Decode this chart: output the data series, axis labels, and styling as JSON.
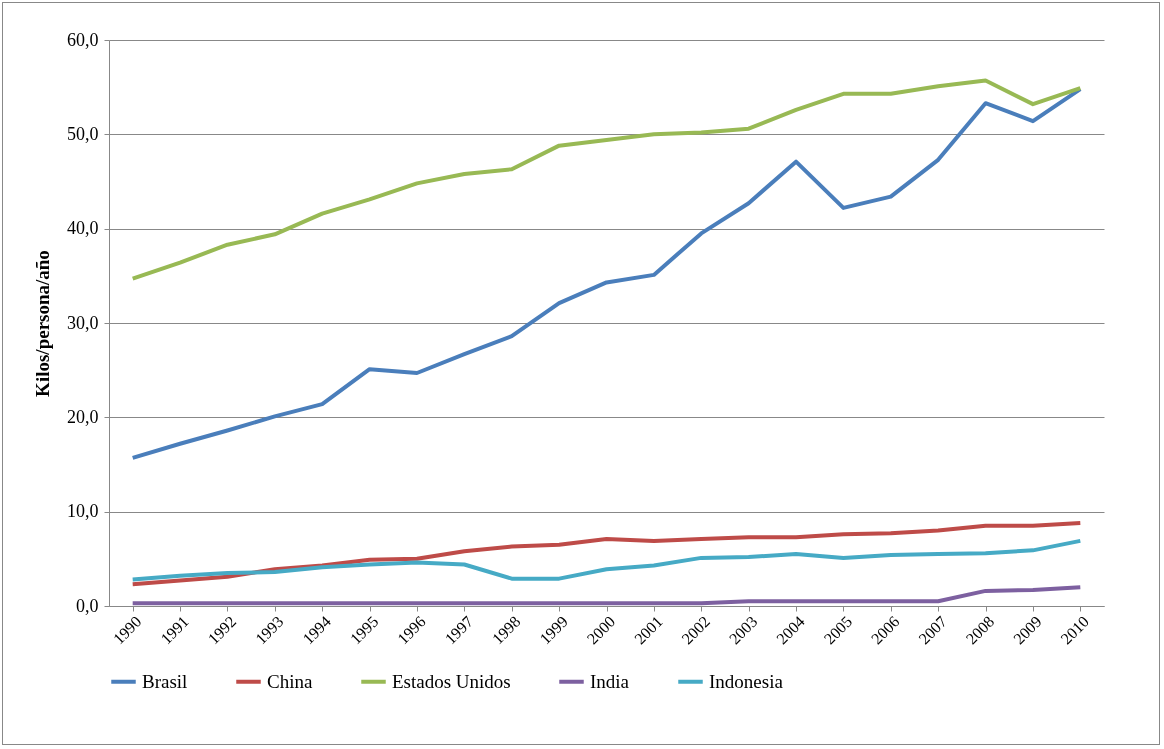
{
  "chart_data": {
    "type": "line",
    "ylabel": "Kilos/persona/año",
    "categories": [
      "1990",
      "1991",
      "1992",
      "1993",
      "1994",
      "1995",
      "1996",
      "1997",
      "1998",
      "1999",
      "2000",
      "2001",
      "2002",
      "2003",
      "2004",
      "2005",
      "2006",
      "2007",
      "2008",
      "2009",
      "2010"
    ],
    "series": [
      {
        "name": "Brasil",
        "color": "#4a7ebb",
        "values": [
          15.7,
          17.2,
          18.6,
          20.1,
          21.4,
          25.1,
          24.7,
          26.7,
          28.6,
          32.1,
          34.3,
          35.1,
          39.5,
          42.7,
          47.1,
          42.2,
          43.4,
          47.3,
          53.3,
          51.4,
          54.8
        ]
      },
      {
        "name": "China",
        "color": "#be4b48",
        "values": [
          2.3,
          2.7,
          3.1,
          3.9,
          4.3,
          4.9,
          5.0,
          5.8,
          6.3,
          6.5,
          7.1,
          6.9,
          7.1,
          7.3,
          7.3,
          7.6,
          7.7,
          8.0,
          8.5,
          8.5,
          8.8
        ]
      },
      {
        "name": "Estados Unidos",
        "color": "#98b954",
        "values": [
          34.7,
          36.4,
          38.3,
          39.4,
          41.6,
          43.1,
          44.8,
          45.8,
          46.3,
          48.8,
          49.4,
          50.0,
          50.2,
          50.6,
          52.6,
          54.3,
          54.3,
          55.1,
          55.7,
          53.2,
          54.9
        ]
      },
      {
        "name": "India",
        "color": "#7d60a0",
        "values": [
          0.3,
          0.3,
          0.3,
          0.3,
          0.3,
          0.3,
          0.3,
          0.3,
          0.3,
          0.3,
          0.3,
          0.3,
          0.3,
          0.5,
          0.5,
          0.5,
          0.5,
          0.5,
          1.6,
          1.7,
          2.0
        ]
      },
      {
        "name": "Indonesia",
        "color": "#46aac5",
        "values": [
          2.8,
          3.2,
          3.5,
          3.6,
          4.1,
          4.4,
          4.6,
          4.4,
          2.9,
          2.9,
          3.9,
          4.3,
          5.1,
          5.2,
          5.5,
          5.1,
          5.4,
          5.5,
          5.6,
          5.9,
          6.9
        ]
      }
    ],
    "ylim": [
      0,
      60
    ],
    "yticks": [
      {
        "value": 0,
        "label": "0,0"
      },
      {
        "value": 10,
        "label": "10,0"
      },
      {
        "value": 20,
        "label": "20,0"
      },
      {
        "value": 30,
        "label": "30,0"
      },
      {
        "value": 40,
        "label": "40,0"
      },
      {
        "value": 50,
        "label": "50,0"
      },
      {
        "value": 60,
        "label": "60,0"
      }
    ],
    "grid": "y",
    "legend": "bottom",
    "marker": "none",
    "line_style": "solid"
  }
}
